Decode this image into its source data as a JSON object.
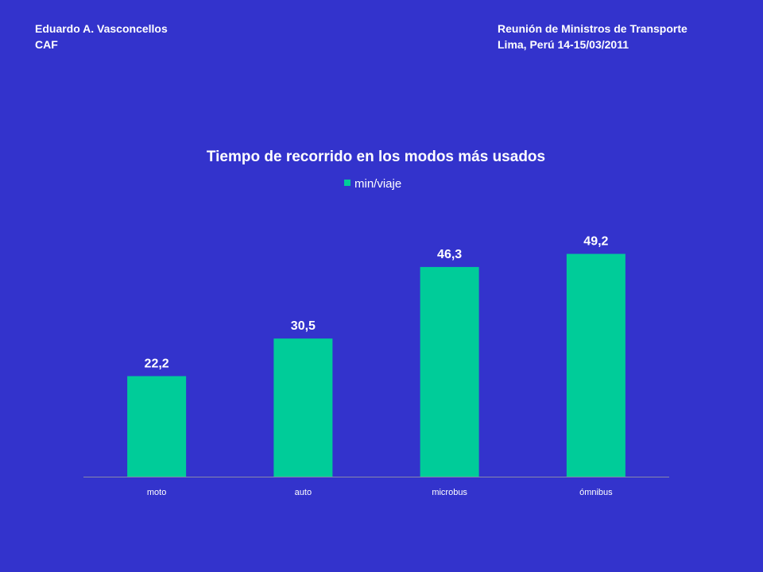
{
  "header": {
    "left_line1": "Eduardo A. Vasconcellos",
    "left_line2": "CAF",
    "right_line1": "Reunión de Ministros  de Transporte",
    "right_line2": "Lima, Perú 14-15/03/2011"
  },
  "colors": {
    "background": "#3333CC",
    "bar": "#00CC99",
    "text": "#ffffff",
    "axis": "#8888aa"
  },
  "chart_data": {
    "type": "bar",
    "title": "Tiempo de recorrido en los modos más usados",
    "categories": [
      "moto",
      "auto",
      "microbus",
      "ómnibus"
    ],
    "series": [
      {
        "name": "min/viaje",
        "values": [
          22.2,
          30.5,
          46.3,
          49.2
        ],
        "labels": [
          "22,2",
          "30,5",
          "46,3",
          "49,2"
        ]
      }
    ],
    "legend": "top-center",
    "grid": false,
    "ylim": [
      0,
      60
    ]
  }
}
